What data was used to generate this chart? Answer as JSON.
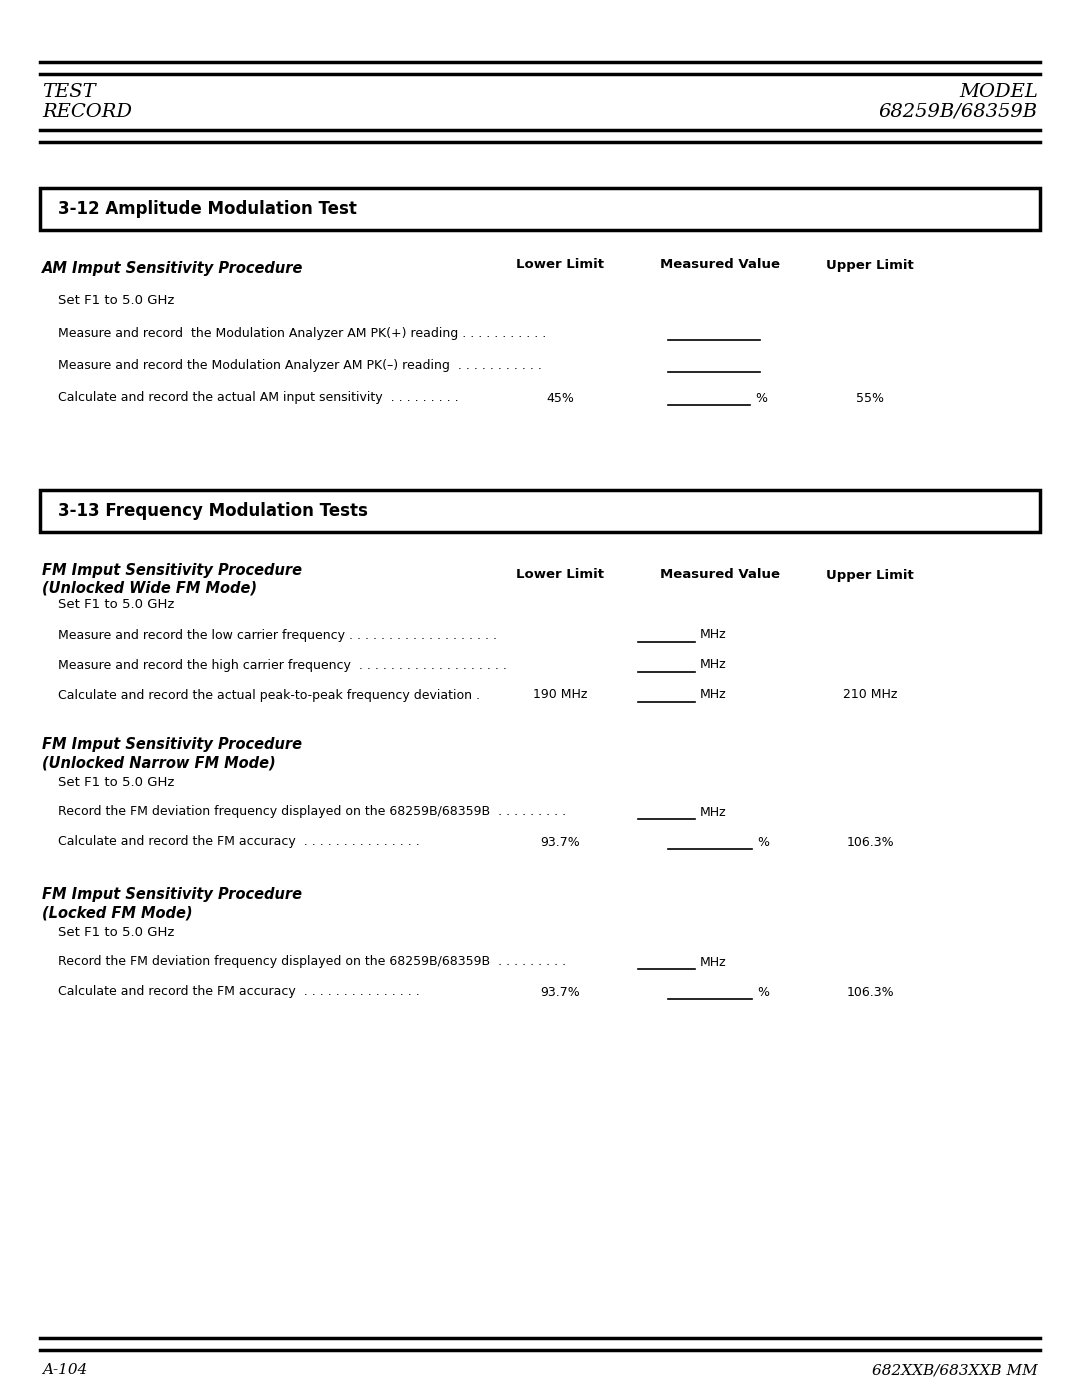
{
  "page_width": 10.8,
  "page_height": 13.97,
  "bg_color": "#ffffff",
  "header_left_line1": "TEST",
  "header_left_line2": "RECORD",
  "header_right_line1": "MODEL",
  "header_right_line2": "68259B/68359B",
  "footer_left": "A-104",
  "footer_right": "682XXB/683XXB MM",
  "section1_title": "3-12 Amplitude Modulation Test",
  "section1_subtitle": "AM Imput Sensitivity Procedure",
  "col_headers": [
    "Lower Limit",
    "Measured Value",
    "Upper Limit"
  ],
  "am_set_f1": "Set F1 to 5.0 GHz",
  "am_row1_text": "Measure and record  the Modulation Analyzer AM PK(+) reading . . . . . . . . . . .",
  "am_row2_text": "Measure and record the Modulation Analyzer AM PK(–) reading  . . . . . . . . . . .",
  "am_row3_text": "Calculate and record the actual AM input sensitivity  . . . . . . . . .",
  "am_row3_lower": "45%",
  "am_row3_upper": "55%",
  "section2_title": "3-13 Frequency Modulation Tests",
  "fm_subtitle1_line1": "FM Imput Sensitivity Procedure",
  "fm_subtitle1_line2": "(Unlocked Wide FM Mode)",
  "fm1_set_f1": "Set F1 to 5.0 GHz",
  "fm1_row1_text": "Measure and record the low carrier frequency . . . . . . . . . . . . . . . . . . .",
  "fm1_row1_unit": "MHz",
  "fm1_row2_text": "Measure and record the high carrier frequency  . . . . . . . . . . . . . . . . . . .",
  "fm1_row2_unit": "MHz",
  "fm1_row3_text": "Calculate and record the actual peak-to-peak frequency deviation .",
  "fm1_row3_lower": "190 MHz",
  "fm1_row3_unit": "MHz",
  "fm1_row3_upper": "210 MHz",
  "fm_subtitle2_line1": "FM Imput Sensitivity Procedure",
  "fm_subtitle2_line2": "(Unlocked Narrow FM Mode)",
  "fm2_set_f1": "Set F1 to 5.0 GHz",
  "fm2_row1_text": "Record the FM deviation frequency displayed on the 68259B/68359B  . . . . . . . . .",
  "fm2_row1_unit": "MHz",
  "fm2_row2_text": "Calculate and record the FM accuracy  . . . . . . . . . . . . . . .",
  "fm2_row2_lower": "93.7%",
  "fm2_row2_upper": "106.3%",
  "fm_subtitle3_line1": "FM Imput Sensitivity Procedure",
  "fm_subtitle3_line2": "(Locked FM Mode)",
  "fm3_set_f1": "Set F1 to 5.0 GHz",
  "fm3_row1_text": "Record the FM deviation frequency displayed on the 68259B/68359B  . . . . . . . . .",
  "fm3_row1_unit": "MHz",
  "fm3_row2_text": "Calculate and record the FM accuracy  . . . . . . . . . . . . . . .",
  "fm3_row2_lower": "93.7%",
  "fm3_row2_upper": "106.3%"
}
